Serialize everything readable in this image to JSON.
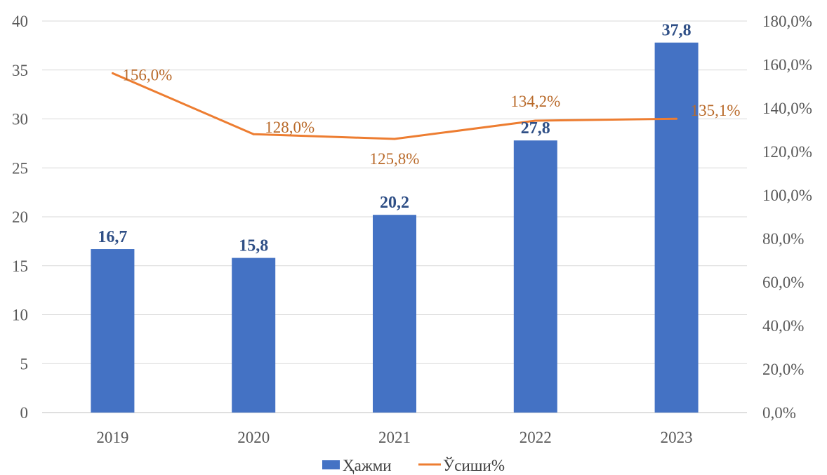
{
  "chart_data": {
    "type": "bar",
    "categories": [
      "2019",
      "2020",
      "2021",
      "2022",
      "2023"
    ],
    "series": [
      {
        "name": "Ҳажми",
        "kind": "bar",
        "axis": "left",
        "values": [
          16.7,
          15.8,
          20.2,
          27.8,
          37.8
        ],
        "labels": [
          "16,7",
          "15,8",
          "20,2",
          "27,8",
          "37,8"
        ],
        "color": "#4472c4"
      },
      {
        "name": "Ўсиши%",
        "kind": "line",
        "axis": "right",
        "values": [
          156.0,
          128.0,
          125.8,
          134.2,
          135.1
        ],
        "labels": [
          "156,0%",
          "128,0%",
          "125,8%",
          "134,2%",
          "135,1%"
        ],
        "color": "#ed7d31"
      }
    ],
    "y_left": {
      "range": [
        0,
        40
      ],
      "ticks": [
        "0",
        "5",
        "10",
        "15",
        "20",
        "25",
        "30",
        "35",
        "40"
      ]
    },
    "y_right": {
      "range": [
        0,
        180
      ],
      "ticks": [
        "0,0%",
        "20,0%",
        "40,0%",
        "60,0%",
        "80,0%",
        "100,0%",
        "120,0%",
        "140,0%",
        "160,0%",
        "180,0%"
      ]
    },
    "grid": true,
    "legend": "bottom-center"
  }
}
